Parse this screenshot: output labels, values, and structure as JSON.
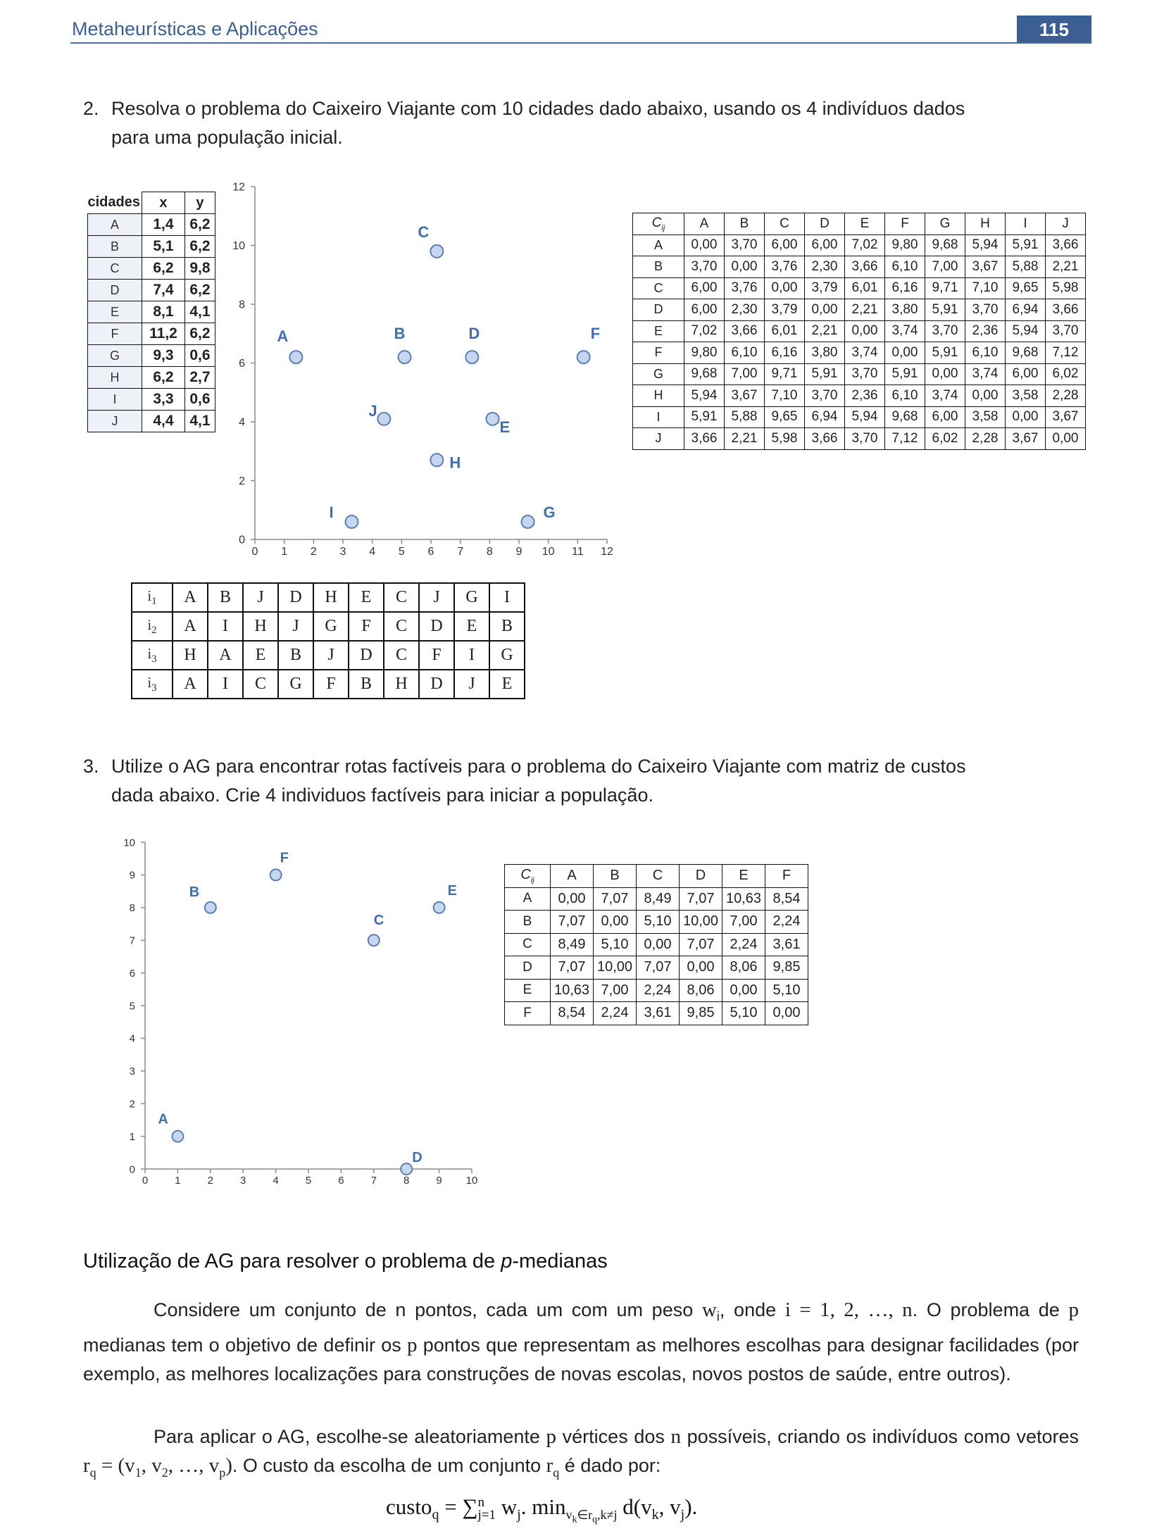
{
  "header": {
    "title": "Metaheurísticas e Aplicações",
    "page": "115"
  },
  "q2": {
    "num": "2.",
    "line1": "Resolva o problema do Caixeiro Viajante com 10 cidades dado abaixo, usando os 4 indivíduos dados",
    "line2": "para uma população inicial."
  },
  "cities_table": {
    "headers": [
      "cidades",
      "x",
      "y"
    ],
    "rows": [
      [
        "A",
        "1,4",
        "6,2"
      ],
      [
        "B",
        "5,1",
        "6,2"
      ],
      [
        "C",
        "6,2",
        "9,8"
      ],
      [
        "D",
        "7,4",
        "6,2"
      ],
      [
        "E",
        "8,1",
        "4,1"
      ],
      [
        "F",
        "11,2",
        "6,2"
      ],
      [
        "G",
        "9,3",
        "0,6"
      ],
      [
        "H",
        "6,2",
        "2,7"
      ],
      [
        "I",
        "3,3",
        "0,6"
      ],
      [
        "J",
        "4,4",
        "4,1"
      ]
    ]
  },
  "chart1": {
    "chart_data": {
      "type": "scatter",
      "points": [
        {
          "label": "A",
          "x": 1.4,
          "y": 6.2
        },
        {
          "label": "B",
          "x": 5.1,
          "y": 6.2
        },
        {
          "label": "C",
          "x": 6.2,
          "y": 9.8
        },
        {
          "label": "D",
          "x": 7.4,
          "y": 6.2
        },
        {
          "label": "E",
          "x": 8.1,
          "y": 4.1
        },
        {
          "label": "F",
          "x": 11.2,
          "y": 6.2
        },
        {
          "label": "G",
          "x": 9.3,
          "y": 0.6
        },
        {
          "label": "H",
          "x": 6.2,
          "y": 2.7
        },
        {
          "label": "I",
          "x": 3.3,
          "y": 0.6
        },
        {
          "label": "J",
          "x": 4.4,
          "y": 4.1
        }
      ],
      "xlim": [
        0,
        12
      ],
      "ylim": [
        0,
        12
      ],
      "xticks": [
        "0",
        "1",
        "2",
        "3",
        "4",
        "5",
        "6",
        "7",
        "8",
        "9",
        "10",
        "11",
        "12"
      ],
      "yticks": [
        "0",
        "2",
        "4",
        "6",
        "8",
        "10",
        "12"
      ]
    }
  },
  "cost10": {
    "corner": "C",
    "corner_sub": "ij",
    "cols": [
      "A",
      "B",
      "C",
      "D",
      "E",
      "F",
      "G",
      "H",
      "I",
      "J"
    ],
    "rows": [
      [
        "A",
        "0,00",
        "3,70",
        "6,00",
        "6,00",
        "7,02",
        "9,80",
        "9,68",
        "5,94",
        "5,91",
        "3,66"
      ],
      [
        "B",
        "3,70",
        "0,00",
        "3,76",
        "2,30",
        "3,66",
        "6,10",
        "7,00",
        "3,67",
        "5,88",
        "2,21"
      ],
      [
        "C",
        "6,00",
        "3,76",
        "0,00",
        "3,79",
        "6,01",
        "6,16",
        "9,71",
        "7,10",
        "9,65",
        "5,98"
      ],
      [
        "D",
        "6,00",
        "2,30",
        "3,79",
        "0,00",
        "2,21",
        "3,80",
        "5,91",
        "3,70",
        "6,94",
        "3,66"
      ],
      [
        "E",
        "7,02",
        "3,66",
        "6,01",
        "2,21",
        "0,00",
        "3,74",
        "3,70",
        "2,36",
        "5,94",
        "3,70"
      ],
      [
        "F",
        "9,80",
        "6,10",
        "6,16",
        "3,80",
        "3,74",
        "0,00",
        "5,91",
        "6,10",
        "9,68",
        "7,12"
      ],
      [
        "G",
        "9,68",
        "7,00",
        "9,71",
        "5,91",
        "3,70",
        "5,91",
        "0,00",
        "3,74",
        "6,00",
        "6,02"
      ],
      [
        "H",
        "5,94",
        "3,67",
        "7,10",
        "3,70",
        "2,36",
        "6,10",
        "3,74",
        "0,00",
        "3,58",
        "2,28"
      ],
      [
        "I",
        "5,91",
        "5,88",
        "9,65",
        "6,94",
        "5,94",
        "9,68",
        "6,00",
        "3,58",
        "0,00",
        "3,67"
      ],
      [
        "J",
        "3,66",
        "2,21",
        "5,98",
        "3,66",
        "3,70",
        "7,12",
        "6,02",
        "2,28",
        "3,67",
        "0,00"
      ]
    ]
  },
  "individuals": [
    [
      "i1",
      "A",
      "B",
      "J",
      "D",
      "H",
      "E",
      "C",
      "J",
      "G",
      "I"
    ],
    [
      "i2",
      "A",
      "I",
      "H",
      "J",
      "G",
      "F",
      "C",
      "D",
      "E",
      "B"
    ],
    [
      "i3",
      "H",
      "A",
      "E",
      "B",
      "J",
      "D",
      "C",
      "F",
      "I",
      "G"
    ],
    [
      "i3",
      "A",
      "I",
      "C",
      "G",
      "F",
      "B",
      "H",
      "D",
      "J",
      "E"
    ]
  ],
  "q3": {
    "num": "3.",
    "line1": "Utilize o AG para encontrar rotas factíveis para o problema do Caixeiro Viajante com matriz de custos",
    "line2": "dada abaixo. Crie 4 individuos factíveis para iniciar a população."
  },
  "chart2": {
    "chart_data": {
      "type": "scatter",
      "points": [
        {
          "label": "A",
          "x": 1,
          "y": 1
        },
        {
          "label": "B",
          "x": 2,
          "y": 8
        },
        {
          "label": "C",
          "x": 7,
          "y": 7
        },
        {
          "label": "D",
          "x": 8,
          "y": 0
        },
        {
          "label": "E",
          "x": 9,
          "y": 8
        },
        {
          "label": "F",
          "x": 4,
          "y": 9
        }
      ],
      "xlim": [
        0,
        10
      ],
      "ylim": [
        0,
        10
      ],
      "xticks": [
        "0",
        "1",
        "2",
        "3",
        "4",
        "5",
        "6",
        "7",
        "8",
        "9",
        "10"
      ],
      "yticks": [
        "0",
        "1",
        "2",
        "3",
        "4",
        "5",
        "6",
        "7",
        "8",
        "9",
        "10"
      ]
    }
  },
  "cost6": {
    "corner": "C",
    "corner_sub": "ij",
    "cols": [
      "A",
      "B",
      "C",
      "D",
      "E",
      "F"
    ],
    "rows": [
      [
        "A",
        "0,00",
        "7,07",
        "8,49",
        "7,07",
        "10,63",
        "8,54"
      ],
      [
        "B",
        "7,07",
        "0,00",
        "5,10",
        "10,00",
        "7,00",
        "2,24"
      ],
      [
        "C",
        "8,49",
        "5,10",
        "0,00",
        "7,07",
        "2,24",
        "3,61"
      ],
      [
        "D",
        "7,07",
        "10,00",
        "7,07",
        "0,00",
        "8,06",
        "9,85"
      ],
      [
        "E",
        "10,63",
        "7,00",
        "2,24",
        "8,06",
        "0,00",
        "5,10"
      ],
      [
        "F",
        "8,54",
        "2,24",
        "3,61",
        "9,85",
        "5,10",
        "0,00"
      ]
    ]
  },
  "section": {
    "title_pre": "Utilização de AG para resolver o problema de ",
    "title_ital": "p",
    "title_post": "-medianas",
    "p1": {
      "a": "Considere um conjunto de n pontos, cada um com um peso ",
      "w": "w",
      "wsub": "i",
      "b": ", onde ",
      "math1": "i = 1, 2, …, n",
      "c": ". O problema de ",
      "p": "p",
      "d": " medianas tem o objetivo de definir os ",
      "p2": "p",
      "e": " pontos que representam as melhores escolhas para designar facilidades (por exemplo, as melhores localizações para construções de novas escolas, novos postos de saúde, entre outros)."
    },
    "p2": {
      "a": "Para aplicar o AG, escolhe-se aleatoriamente ",
      "p": "p",
      "b": " vértices dos ",
      "n": "n",
      "c": " possíveis, criando os indivíduos como vetores ",
      "r": "r",
      "rsub": "q",
      "math": " = (v",
      "v1": "1",
      "v2": "2",
      "vp": "p",
      "d": ". O custo da escolha de um conjunto ",
      "r2": "r",
      "r2sub": "q",
      "e": " é dado por:"
    },
    "formula": "custo_q = Σ_{j=1}^{n} w_j . min_{v_k∈r_q, k≠j} d(v_k, v_j)."
  }
}
